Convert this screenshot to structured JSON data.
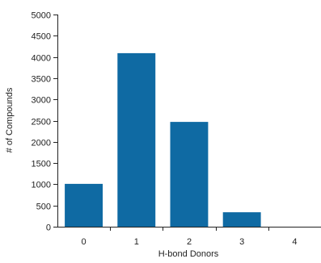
{
  "chart_data": {
    "type": "bar",
    "categories": [
      "0",
      "1",
      "2",
      "3",
      "4"
    ],
    "values": [
      1010,
      4090,
      2470,
      340,
      0
    ],
    "xlabel": "H-bond Donors",
    "ylabel": "# of Compounds",
    "ylim": [
      0,
      5000
    ],
    "yticks": [
      0,
      500,
      1000,
      1500,
      2000,
      2500,
      3000,
      3500,
      4000,
      4500,
      5000
    ],
    "grid": false,
    "legend": "none",
    "bar_color": "#0f6aa3"
  }
}
